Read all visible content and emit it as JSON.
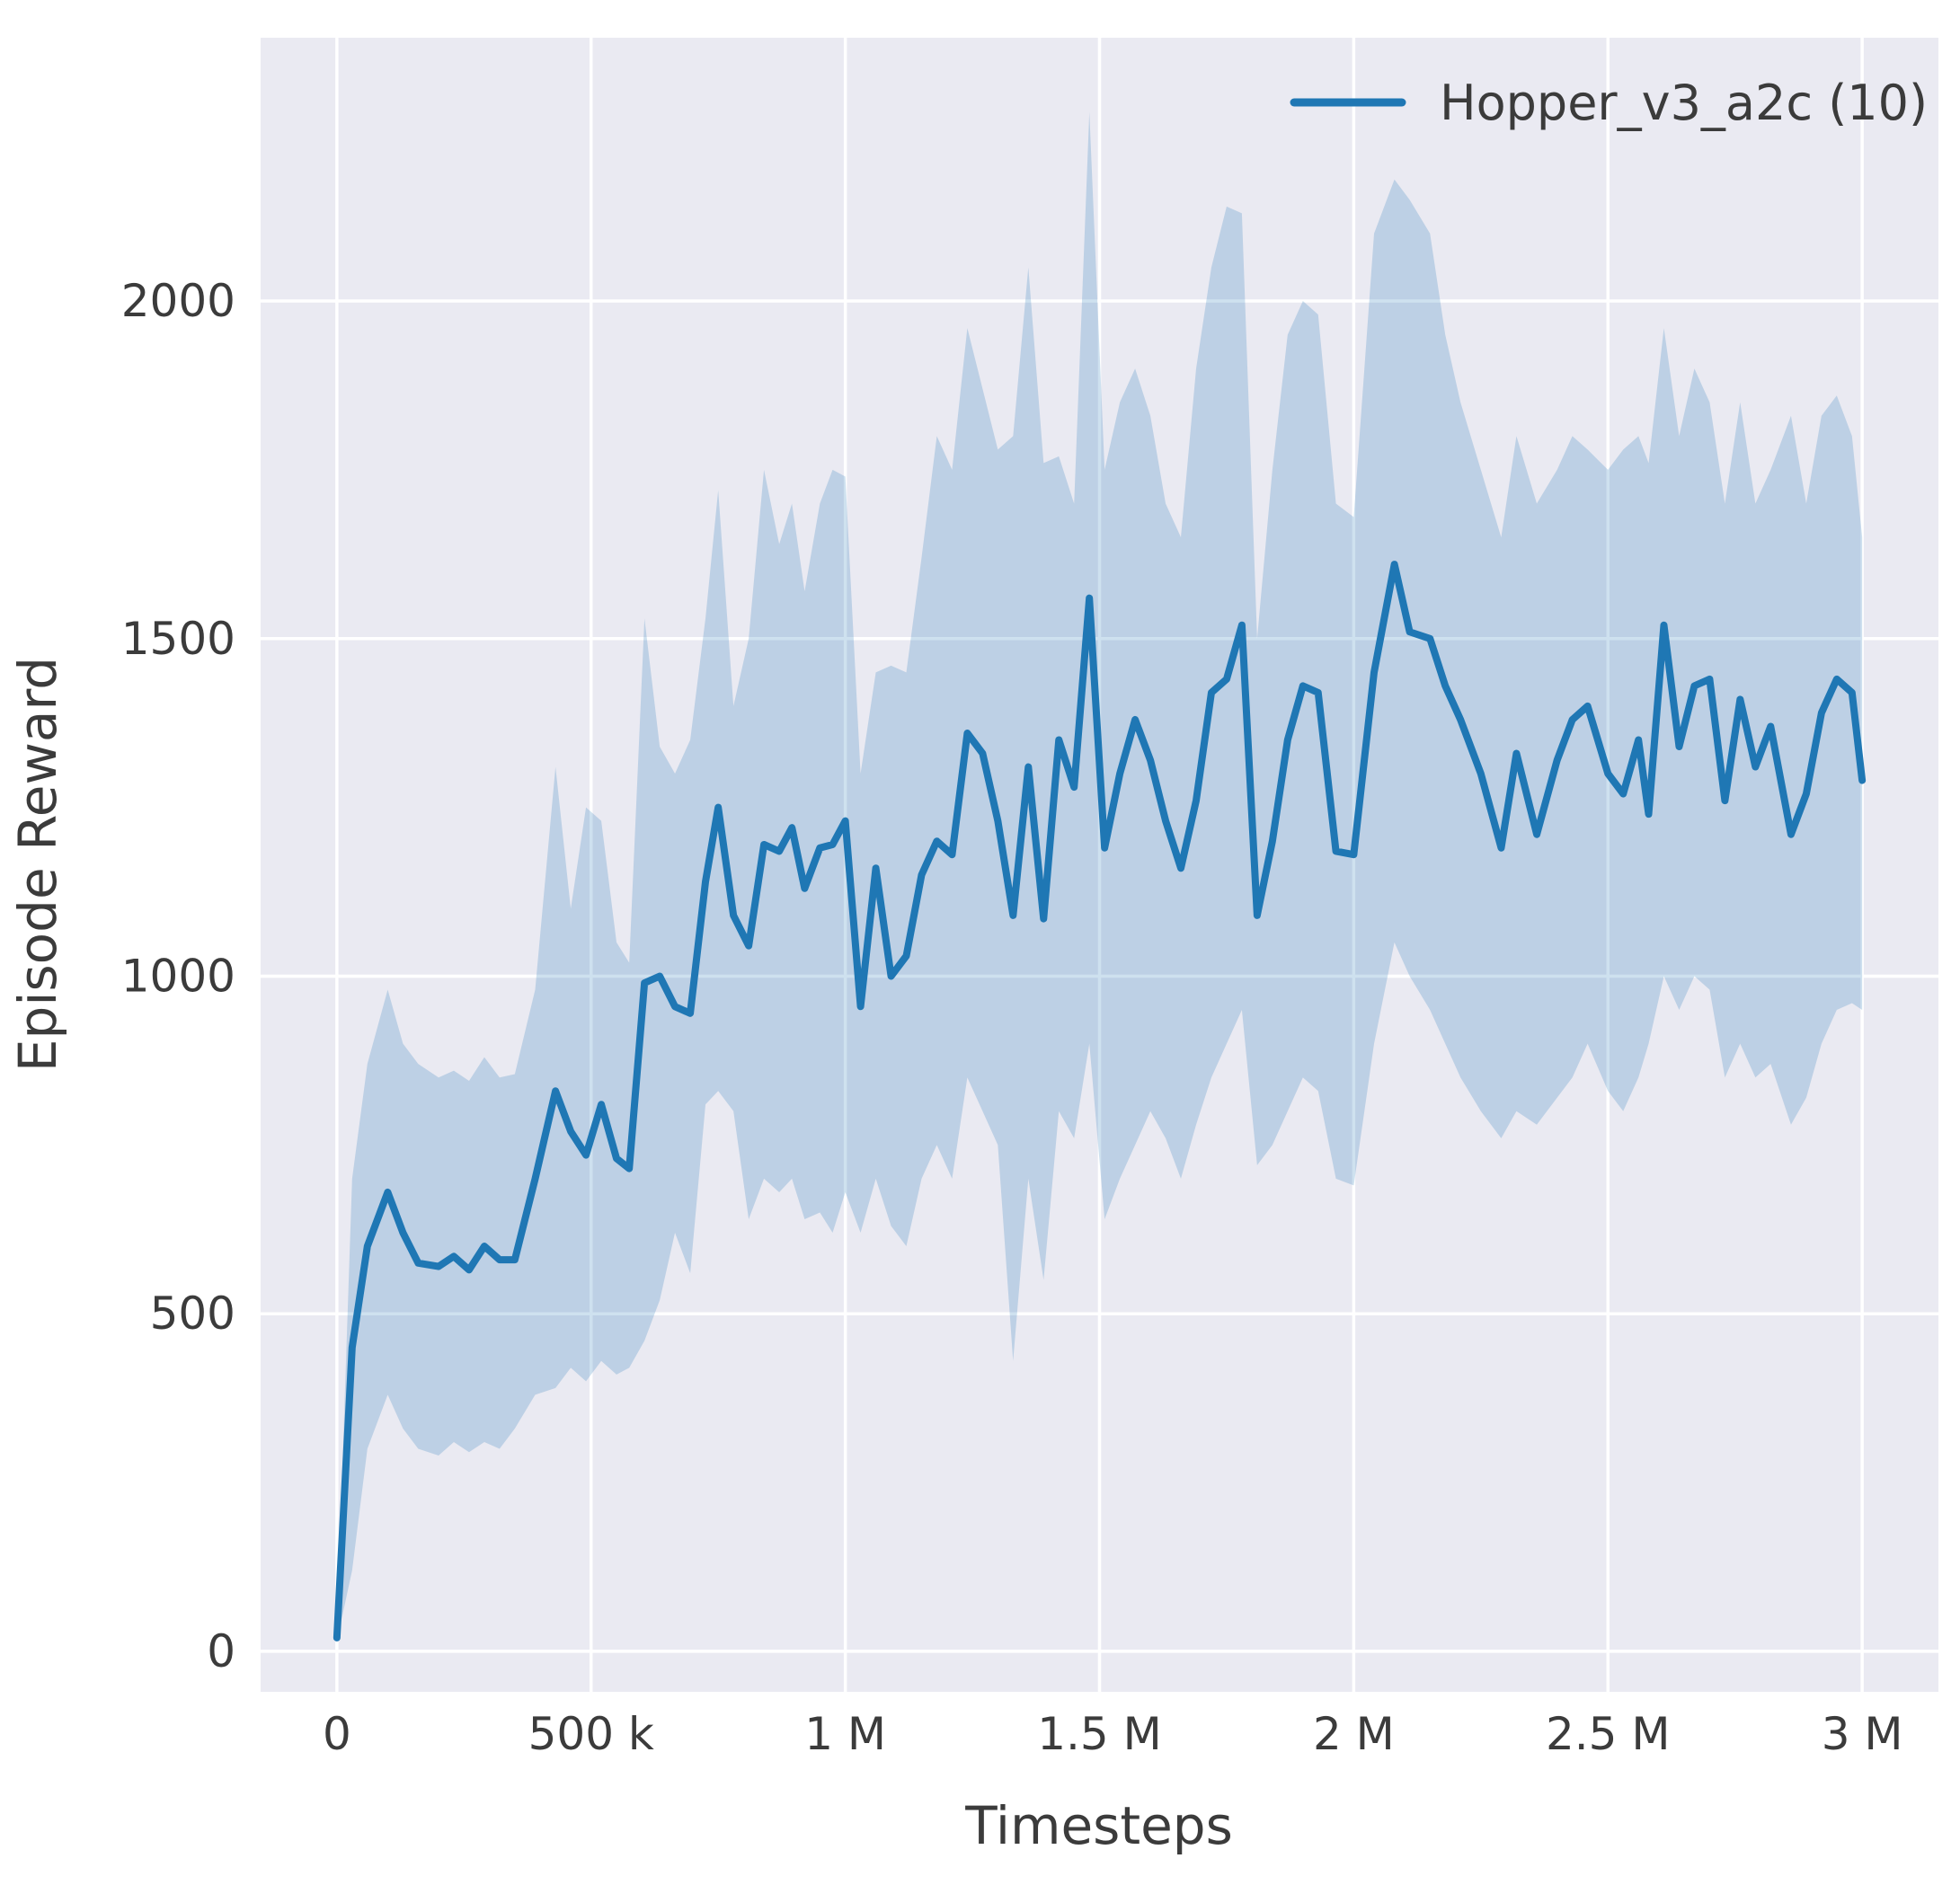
{
  "chart_data": {
    "type": "line",
    "title": "",
    "xlabel": "Timesteps",
    "ylabel": "Episode Reward",
    "legend": [
      {
        "label": "Hopper_v3_a2c (10)"
      }
    ],
    "legend_position": "upper right",
    "grid": true,
    "x_unit_note": "x values in thousands of timesteps",
    "xlim": [
      -150,
      3150
    ],
    "ylim": [
      -60,
      2390
    ],
    "xticks": [
      {
        "v": 0,
        "label": "0"
      },
      {
        "v": 500,
        "label": "500 k"
      },
      {
        "v": 1000,
        "label": "1 M"
      },
      {
        "v": 1500,
        "label": "1.5 M"
      },
      {
        "v": 2000,
        "label": "2 M"
      },
      {
        "v": 2500,
        "label": "2.5 M"
      },
      {
        "v": 3000,
        "label": "3 M"
      }
    ],
    "yticks": [
      {
        "v": 0,
        "label": "0"
      },
      {
        "v": 500,
        "label": "500"
      },
      {
        "v": 1000,
        "label": "1000"
      },
      {
        "v": 1500,
        "label": "1500"
      },
      {
        "v": 2000,
        "label": "2000"
      }
    ],
    "colors": {
      "line": "#1f77b4",
      "band": "#1f77b4",
      "band_opacity": 0.22,
      "plot_bg": "#eaeaf2",
      "grid": "#ffffff",
      "text": "#3b3b3b"
    },
    "x": [
      0,
      30,
      60,
      100,
      130,
      160,
      200,
      230,
      260,
      290,
      320,
      350,
      390,
      430,
      460,
      490,
      520,
      550,
      575,
      605,
      635,
      665,
      695,
      725,
      750,
      780,
      810,
      840,
      870,
      895,
      920,
      950,
      975,
      1000,
      1030,
      1060,
      1090,
      1120,
      1150,
      1180,
      1210,
      1240,
      1270,
      1300,
      1330,
      1360,
      1390,
      1420,
      1450,
      1480,
      1510,
      1540,
      1570,
      1600,
      1630,
      1660,
      1690,
      1720,
      1750,
      1780,
      1810,
      1840,
      1870,
      1900,
      1930,
      1965,
      2000,
      2040,
      2080,
      2110,
      2150,
      2180,
      2210,
      2250,
      2290,
      2320,
      2360,
      2400,
      2430,
      2460,
      2500,
      2530,
      2560,
      2580,
      2610,
      2640,
      2670,
      2700,
      2730,
      2760,
      2790,
      2820,
      2860,
      2890,
      2920,
      2950,
      2980,
      3000
    ],
    "mean": [
      20,
      450,
      600,
      680,
      620,
      575,
      570,
      585,
      565,
      600,
      580,
      580,
      700,
      830,
      770,
      735,
      810,
      730,
      715,
      990,
      1000,
      955,
      945,
      1140,
      1250,
      1090,
      1045,
      1195,
      1185,
      1220,
      1130,
      1190,
      1195,
      1230,
      955,
      1160,
      1000,
      1030,
      1150,
      1200,
      1180,
      1360,
      1330,
      1230,
      1090,
      1310,
      1085,
      1350,
      1280,
      1560,
      1190,
      1300,
      1380,
      1320,
      1230,
      1160,
      1260,
      1420,
      1440,
      1520,
      1090,
      1200,
      1350,
      1430,
      1420,
      1185,
      1180,
      1450,
      1610,
      1510,
      1500,
      1430,
      1380,
      1300,
      1190,
      1330,
      1210,
      1320,
      1380,
      1400,
      1300,
      1270,
      1350,
      1240,
      1520,
      1340,
      1430,
      1440,
      1260,
      1410,
      1310,
      1370,
      1210,
      1270,
      1390,
      1440,
      1420,
      1290
    ],
    "lower": [
      15,
      120,
      300,
      380,
      330,
      300,
      290,
      310,
      295,
      310,
      300,
      330,
      380,
      390,
      420,
      400,
      430,
      410,
      420,
      460,
      520,
      620,
      560,
      810,
      830,
      800,
      640,
      700,
      680,
      700,
      640,
      650,
      620,
      680,
      620,
      700,
      630,
      600,
      700,
      750,
      700,
      850,
      800,
      750,
      430,
      700,
      550,
      800,
      760,
      900,
      640,
      700,
      750,
      800,
      760,
      700,
      780,
      850,
      900,
      950,
      720,
      750,
      800,
      850,
      830,
      700,
      690,
      900,
      1050,
      1000,
      950,
      900,
      850,
      800,
      760,
      800,
      780,
      820,
      850,
      900,
      830,
      800,
      850,
      900,
      1000,
      950,
      1000,
      980,
      850,
      900,
      850,
      870,
      780,
      820,
      900,
      950,
      960,
      950
    ],
    "upper": [
      30,
      700,
      870,
      980,
      900,
      870,
      850,
      860,
      845,
      880,
      850,
      855,
      980,
      1310,
      1100,
      1250,
      1230,
      1050,
      1020,
      1530,
      1340,
      1300,
      1350,
      1530,
      1720,
      1400,
      1500,
      1750,
      1640,
      1700,
      1570,
      1700,
      1750,
      1740,
      1300,
      1450,
      1460,
      1450,
      1620,
      1800,
      1750,
      1960,
      1870,
      1780,
      1800,
      2050,
      1760,
      1770,
      1700,
      2280,
      1750,
      1850,
      1900,
      1830,
      1700,
      1650,
      1900,
      2050,
      2140,
      2130,
      1500,
      1750,
      1950,
      2000,
      1980,
      1700,
      1680,
      2100,
      2180,
      2150,
      2100,
      1950,
      1850,
      1750,
      1650,
      1800,
      1700,
      1750,
      1800,
      1780,
      1750,
      1780,
      1800,
      1760,
      1960,
      1800,
      1900,
      1850,
      1700,
      1850,
      1700,
      1750,
      1830,
      1700,
      1830,
      1860,
      1800,
      1650
    ]
  }
}
